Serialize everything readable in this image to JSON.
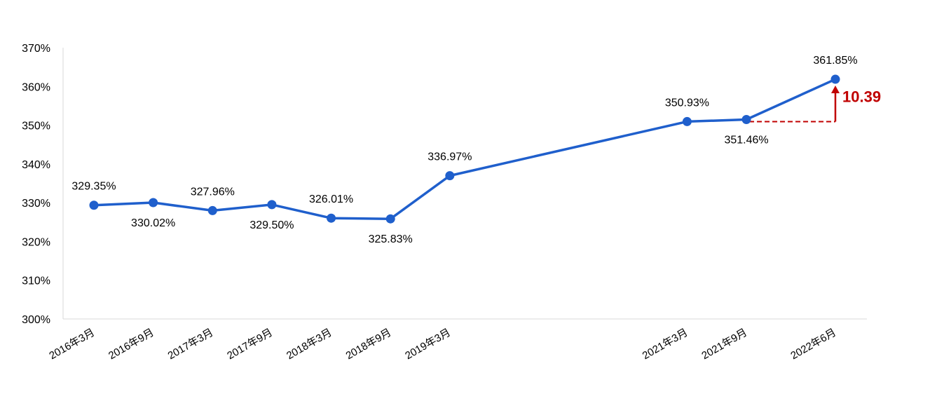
{
  "chart_data": {
    "type": "line",
    "title": "",
    "xlabel": "",
    "ylabel": "",
    "ylim": [
      300,
      370
    ],
    "y_ticks": [
      "300%",
      "310%",
      "320%",
      "330%",
      "340%",
      "350%",
      "360%",
      "370%"
    ],
    "y_tick_values": [
      300,
      310,
      320,
      330,
      340,
      350,
      360,
      370
    ],
    "categories": [
      "2016年3月",
      "2016年9月",
      "2017年3月",
      "2017年9月",
      "2018年3月",
      "2018年9月",
      "2019年3月",
      "2021年3月",
      "2021年9月",
      "2022年6月"
    ],
    "x_dates": [
      "2016-03",
      "2016-09",
      "2017-03",
      "2017-09",
      "2018-03",
      "2018-09",
      "2019-03",
      "2021-03",
      "2021-09",
      "2022-06"
    ],
    "series": [
      {
        "values": [
          329.35,
          330.02,
          327.96,
          329.5,
          326.01,
          325.83,
          336.97,
          350.93,
          351.46,
          361.85
        ],
        "labels": [
          "329.35%",
          "330.02%",
          "327.96%",
          "329.50%",
          "326.01%",
          "325.83%",
          "336.97%",
          "350.93%",
          "351.46%",
          "361.85%"
        ],
        "color": "#1f5fcc"
      }
    ],
    "grid": false,
    "annotation": {
      "text": "10.39",
      "from_category": "2021年9月",
      "to_category": "2022年6月",
      "color": "#c00000"
    }
  }
}
